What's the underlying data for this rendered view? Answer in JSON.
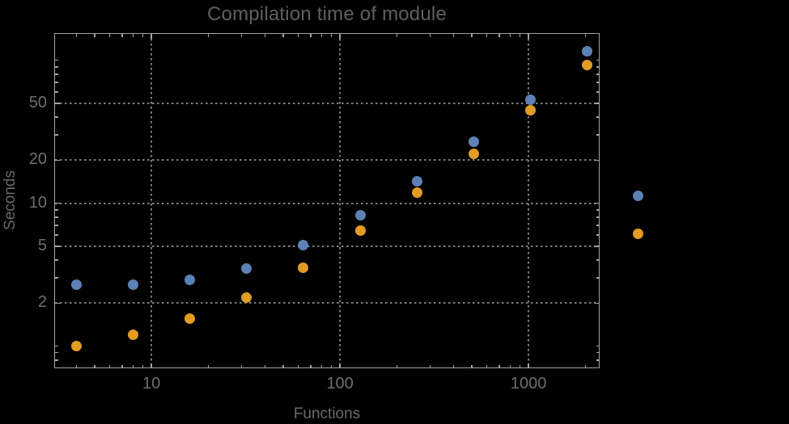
{
  "window": {
    "background": "#000000"
  },
  "chart_data": {
    "type": "scatter",
    "title": "Compilation time of module",
    "xlabel": "Functions",
    "ylabel": "Seconds",
    "x_scale": "log",
    "y_scale": "log",
    "xlim": [
      3.08,
      2360
    ],
    "ylim": [
      0.705,
      153
    ],
    "grid": "dotted-lines-at-major-ticks",
    "x": [
      4,
      8,
      16,
      32,
      64,
      128,
      256,
      512,
      1024,
      2048
    ],
    "series": [
      {
        "key": "series-1",
        "color": "#5E81B5",
        "values": [
          2.7,
          2.7,
          2.9,
          3.5,
          5.1,
          8.2,
          14.3,
          27,
          53,
          115
        ]
      },
      {
        "key": "series-2",
        "color": "#E19C24",
        "values": [
          1.0,
          1.2,
          1.55,
          2.2,
          3.55,
          6.4,
          11.8,
          22.3,
          45,
          93
        ]
      }
    ],
    "x_ticks": {
      "major": [
        10,
        100,
        1000
      ],
      "major_labels": [
        "10",
        "100",
        "1000"
      ],
      "minor": [
        4,
        5,
        6,
        7,
        8,
        9,
        20,
        30,
        40,
        50,
        60,
        70,
        80,
        90,
        200,
        300,
        400,
        500,
        600,
        700,
        800,
        900,
        2000
      ]
    },
    "y_ticks": {
      "major": [
        2,
        5,
        10,
        20,
        50
      ],
      "major_labels": [
        "2",
        "5",
        "10",
        "20",
        "50"
      ],
      "minor": [
        0.8,
        0.9,
        1,
        3,
        4,
        6,
        7,
        8,
        9,
        30,
        40,
        60,
        70,
        80,
        90,
        100
      ]
    },
    "legend": {
      "position": "outside-right",
      "labels_visible": false,
      "marker_count": 2
    },
    "colors": {
      "frame": "#a2a2a2",
      "grid": "#7d7d7d",
      "title_text": "#5f5f5f",
      "axis_label_text": "#696969",
      "tick_label_text": "#6e6e6e",
      "series1": "#5E81B5",
      "series2": "#E19C24"
    }
  }
}
